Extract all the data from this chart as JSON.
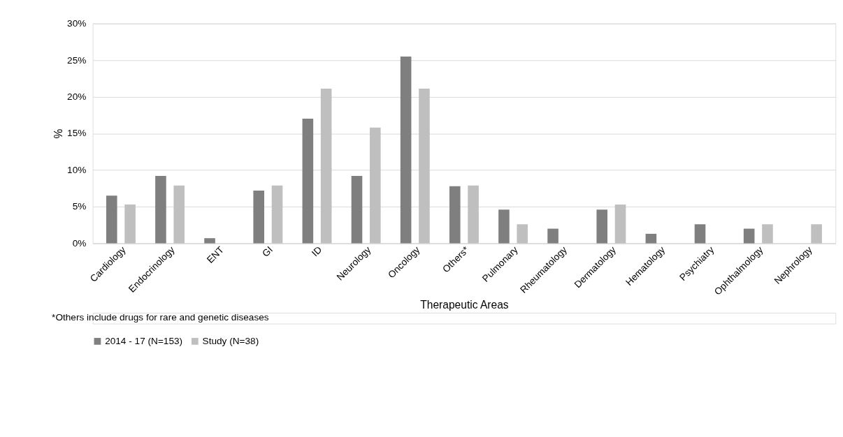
{
  "chart_data": {
    "type": "bar",
    "xlabel": "Therapeutic Areas",
    "ylabel": "%",
    "categories": [
      "Cardiology",
      "Endocrinology",
      "ENT",
      "GI",
      "ID",
      "Neurology",
      "Oncology",
      "Others*",
      "Pulmonary",
      "Rheumatology",
      "Dermatology",
      "Hematology",
      "Psychiatry",
      "Ophthalmology",
      "Nephrology"
    ],
    "series": [
      {
        "name": "2014 - 17 (N=153)",
        "color": "#7f7f7f",
        "values": [
          6.5,
          9.2,
          0.7,
          7.2,
          17.0,
          9.2,
          25.5,
          7.8,
          4.6,
          2.0,
          4.6,
          1.3,
          2.6,
          2.0,
          0
        ]
      },
      {
        "name": "Study (N=38)",
        "color": "#bfbfbf",
        "values": [
          5.3,
          7.9,
          0,
          7.9,
          21.1,
          15.8,
          21.1,
          7.9,
          2.6,
          0,
          5.3,
          0,
          0,
          2.6,
          2.6
        ]
      }
    ],
    "ylim": [
      0,
      30
    ],
    "yticks": [
      {
        "value": 0,
        "label": "0%"
      },
      {
        "value": 5,
        "label": "5%"
      },
      {
        "value": 10,
        "label": "10%"
      },
      {
        "value": 15,
        "label": "15%"
      },
      {
        "value": 20,
        "label": "20%"
      },
      {
        "value": 25,
        "label": "25%"
      },
      {
        "value": 30,
        "label": "30%"
      }
    ],
    "grid": "y",
    "legend": "bottom",
    "annotations": [
      "*Others include drugs for rare and genetic diseases"
    ]
  }
}
